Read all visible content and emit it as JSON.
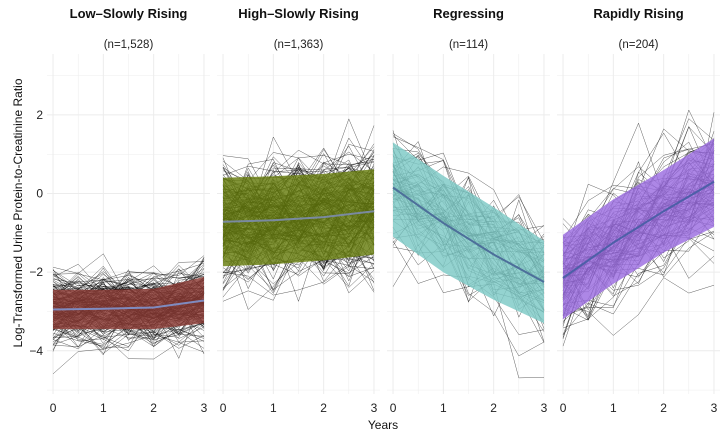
{
  "chart_data": {
    "type": "line",
    "xlabel": "Years",
    "ylabel": "Log-Transformed Urine Protein-to-Creatinine Ratio",
    "x_ticks": [
      "0",
      "1",
      "2",
      "3"
    ],
    "y_ticks": [
      "2",
      "0",
      "−2",
      "−4"
    ],
    "x_values": [
      0,
      1,
      2,
      3
    ],
    "y_tick_values": [
      2,
      0,
      -2,
      -4
    ],
    "xlim": [
      -0.12,
      3.12
    ],
    "ylim": [
      -5.1,
      3.55
    ],
    "panels": [
      {
        "title": "Low–Slowly Rising",
        "subtitle": "(n=1,528)",
        "band_color": "#8b3a34",
        "line_color": "#7f8bc0",
        "mean": [
          -2.95,
          -2.93,
          -2.9,
          -2.72
        ],
        "lower": [
          -3.45,
          -3.45,
          -3.45,
          -3.3
        ],
        "upper": [
          -2.45,
          -2.45,
          -2.42,
          -2.12
        ],
        "trace_count": 170,
        "trace_sd": 0.62
      },
      {
        "title": "High–Slowly Rising",
        "subtitle": "(n=1,363)",
        "band_color": "#667d0d",
        "line_color": "#7a8aa0",
        "mean": [
          -0.72,
          -0.68,
          -0.6,
          -0.45
        ],
        "lower": [
          -1.85,
          -1.8,
          -1.7,
          -1.55
        ],
        "upper": [
          0.4,
          0.44,
          0.5,
          0.62
        ],
        "trace_count": 200,
        "trace_sd": 0.95
      },
      {
        "title": "Regressing",
        "subtitle": "(n=114)",
        "band_color": "#7cc9c6",
        "line_color": "#4d6f9a",
        "mean": [
          0.15,
          -0.75,
          -1.55,
          -2.25
        ],
        "lower": [
          -1.1,
          -2.0,
          -2.7,
          -3.3
        ],
        "upper": [
          1.3,
          0.45,
          -0.35,
          -1.2
        ],
        "trace_count": 80,
        "trace_sd": 0.95
      },
      {
        "title": "Rapidly Rising",
        "subtitle": "(n=204)",
        "band_color": "#9b6ce0",
        "line_color": "#4d5fa8",
        "mean": [
          -2.15,
          -1.25,
          -0.45,
          0.3
        ],
        "lower": [
          -3.2,
          -2.3,
          -1.5,
          -0.85
        ],
        "upper": [
          -1.05,
          -0.15,
          0.6,
          1.4
        ],
        "trace_count": 110,
        "trace_sd": 0.95
      }
    ]
  }
}
